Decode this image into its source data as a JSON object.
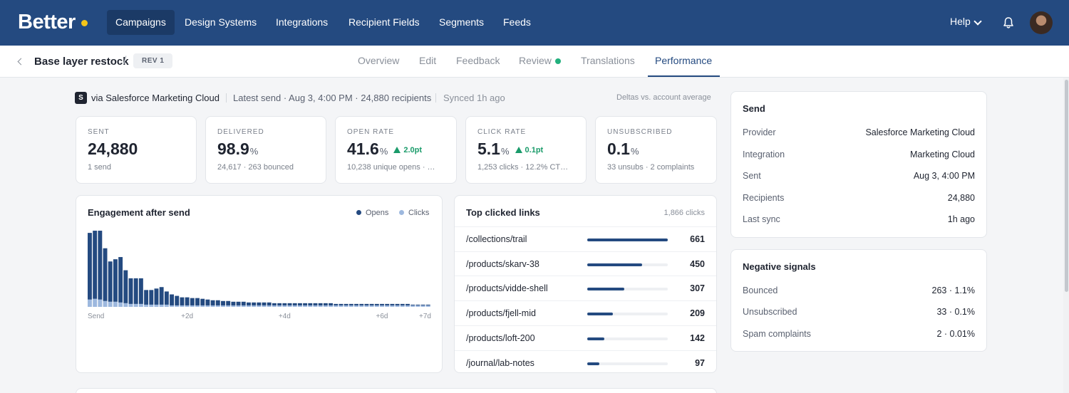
{
  "nav": {
    "logo": "Better",
    "items": [
      "Campaigns",
      "Design Systems",
      "Integrations",
      "Recipient Fields",
      "Segments",
      "Feeds"
    ],
    "active": "Campaigns",
    "help": "Help"
  },
  "subheader": {
    "title": "Base layer restock",
    "revision": "REV 1",
    "tabs": [
      "Overview",
      "Edit",
      "Feedback",
      "Review",
      "Translations",
      "Performance"
    ],
    "active_tab": "Performance"
  },
  "info": {
    "badge": "S",
    "source": "via Salesforce Marketing Cloud",
    "latest": "Latest send · Aug 3, 4:00 PM · 24,880 recipients",
    "synced": "Synced 1h ago",
    "deltas_note": "Deltas vs. account average"
  },
  "kpis": [
    {
      "label": "SENT",
      "value": "24,880",
      "unit": "",
      "delta": "",
      "sub": "1 send"
    },
    {
      "label": "DELIVERED",
      "value": "98.9",
      "unit": "%",
      "delta": "",
      "sub": "24,617 · 263 bounced"
    },
    {
      "label": "OPEN RATE",
      "value": "41.6",
      "unit": "%",
      "delta": "2.0pt",
      "sub": "10,238 unique opens · …"
    },
    {
      "label": "CLICK RATE",
      "value": "5.1",
      "unit": "%",
      "delta": "0.1pt",
      "sub": "1,253 clicks · 12.2% CT…"
    },
    {
      "label": "UNSUBSCRIBED",
      "value": "0.1",
      "unit": "%",
      "delta": "",
      "sub": "33 unsubs · 2 complaints"
    }
  ],
  "engagement": {
    "title": "Engagement after send",
    "legend_opens": "Opens",
    "legend_clicks": "Clicks",
    "colors": {
      "opens": "#244a80",
      "clicks": "#9db8de"
    }
  },
  "chart_data": {
    "type": "bar",
    "stacked": true,
    "x_tick_labels": [
      "Send",
      "+2d",
      "+4d",
      "+6d",
      "+7d"
    ],
    "x_tick_index": [
      0,
      19,
      38,
      57,
      66
    ],
    "series": [
      {
        "name": "Opens",
        "values": [
          91,
          93,
          94,
          72,
          55,
          58,
          62,
          45,
          35,
          35,
          35,
          20,
          20,
          22,
          24,
          18,
          15,
          13,
          11,
          11,
          10,
          10,
          9,
          8,
          7,
          7,
          6,
          6,
          5,
          5,
          5,
          4,
          4,
          4,
          4,
          4,
          3,
          3,
          3,
          3,
          3,
          3,
          3,
          3,
          3,
          3,
          3,
          3,
          2,
          2,
          2,
          2,
          2,
          2,
          2,
          2,
          2,
          2,
          2,
          2,
          2,
          2,
          2,
          1,
          1,
          1,
          1
        ]
      },
      {
        "name": "Clicks",
        "values": [
          10,
          11,
          10,
          8,
          7,
          7,
          6,
          5,
          4,
          4,
          4,
          3,
          3,
          3,
          3,
          3,
          2,
          2,
          2,
          2,
          2,
          2,
          2,
          2,
          2,
          2,
          2,
          2,
          2,
          2,
          2,
          2,
          2,
          2,
          2,
          2,
          2,
          2,
          2,
          2,
          2,
          2,
          2,
          2,
          2,
          2,
          2,
          2,
          2,
          2,
          2,
          2,
          2,
          2,
          2,
          2,
          2,
          2,
          2,
          2,
          2,
          2,
          2,
          2,
          2,
          2,
          2
        ]
      }
    ],
    "ylim": [
      0,
      105
    ]
  },
  "top_links": {
    "title": "Top clicked links",
    "total": "1,866 clicks",
    "max": 661,
    "items": [
      {
        "path": "/collections/trail",
        "count": 661
      },
      {
        "path": "/products/skarv-38",
        "count": 450
      },
      {
        "path": "/products/vidde-shell",
        "count": 307
      },
      {
        "path": "/products/fjell-mid",
        "count": 209
      },
      {
        "path": "/products/loft-200",
        "count": 142
      },
      {
        "path": "/journal/lab-notes",
        "count": 97
      }
    ]
  },
  "send_card": {
    "title": "Send",
    "rows": [
      {
        "k": "Provider",
        "v": "Salesforce Marketing Cloud"
      },
      {
        "k": "Integration",
        "v": "Marketing Cloud"
      },
      {
        "k": "Sent",
        "v": "Aug 3, 4:00 PM"
      },
      {
        "k": "Recipients",
        "v": "24,880"
      },
      {
        "k": "Last sync",
        "v": "1h ago"
      }
    ]
  },
  "negative_card": {
    "title": "Negative signals",
    "rows": [
      {
        "k": "Bounced",
        "v": "263 · 1.1%"
      },
      {
        "k": "Unsubscribed",
        "v": "33 · 0.1%"
      },
      {
        "k": "Spam complaints",
        "v": "2 · 0.01%"
      }
    ]
  }
}
